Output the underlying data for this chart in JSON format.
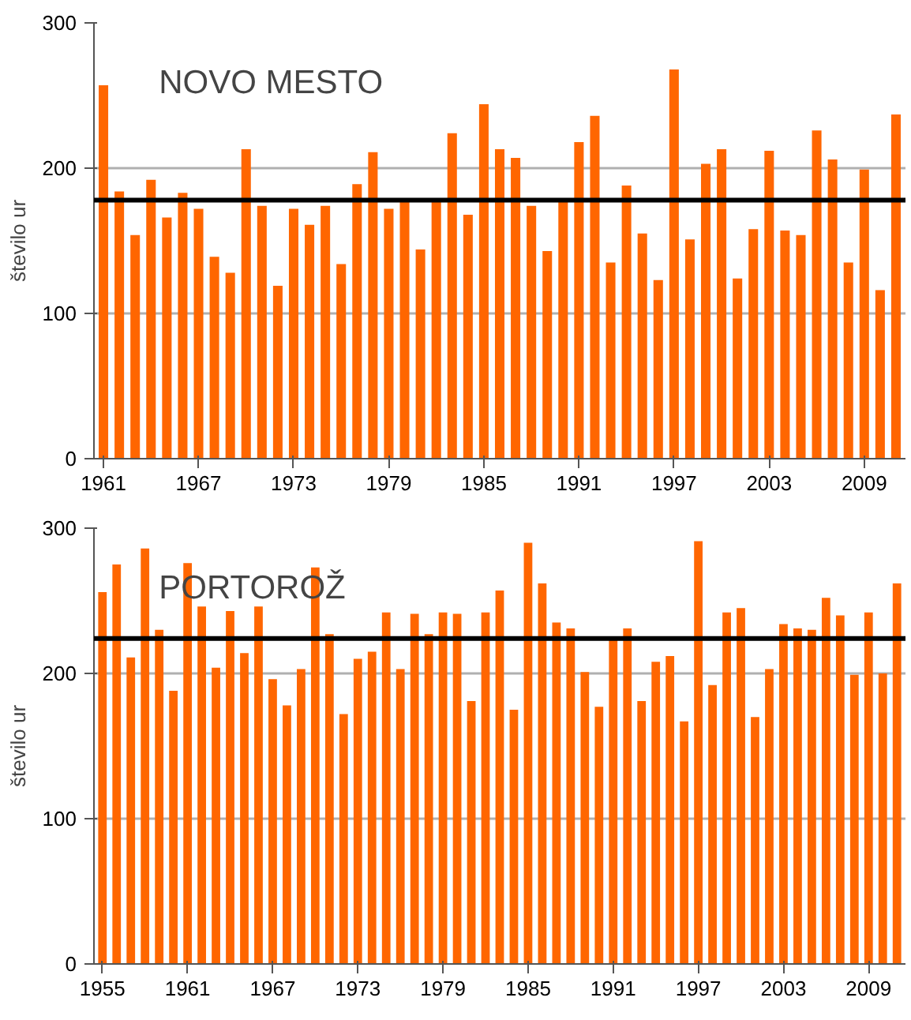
{
  "chart_data": [
    {
      "type": "bar",
      "title": "NOVO MESTO",
      "ylabel": "število ur",
      "x": [
        1961,
        1962,
        1963,
        1964,
        1965,
        1966,
        1967,
        1968,
        1969,
        1970,
        1971,
        1972,
        1973,
        1974,
        1975,
        1976,
        1977,
        1978,
        1979,
        1980,
        1981,
        1982,
        1983,
        1984,
        1985,
        1986,
        1987,
        1988,
        1989,
        1990,
        1991,
        1992,
        1993,
        1994,
        1995,
        1996,
        1997,
        1998,
        1999,
        2000,
        2001,
        2002,
        2003,
        2004,
        2005,
        2006,
        2007,
        2008,
        2009,
        2010,
        2011
      ],
      "values": [
        257,
        184,
        154,
        192,
        166,
        183,
        172,
        139,
        128,
        213,
        174,
        119,
        172,
        161,
        174,
        134,
        189,
        211,
        172,
        177,
        144,
        177,
        224,
        168,
        244,
        213,
        207,
        174,
        143,
        177,
        218,
        236,
        135,
        188,
        155,
        123,
        268,
        151,
        203,
        213,
        124,
        158,
        212,
        157,
        154,
        226,
        206,
        135,
        199,
        116,
        237
      ],
      "color": "#ff6600",
      "xlim": [
        1960.4,
        2011.6
      ],
      "xticks": [
        1961,
        1967,
        1973,
        1979,
        1985,
        1991,
        1997,
        2003,
        2009
      ],
      "ylim": [
        0,
        300
      ],
      "yticks": [
        0,
        100,
        200,
        300
      ],
      "grid": "y",
      "ref_lines": [
        {
          "axis": "y",
          "value": 178,
          "color": "#000000"
        }
      ]
    },
    {
      "type": "bar",
      "title": "PORTOROŽ",
      "ylabel": "število ur",
      "x": [
        1955,
        1956,
        1957,
        1958,
        1959,
        1960,
        1961,
        1962,
        1963,
        1964,
        1965,
        1966,
        1967,
        1968,
        1969,
        1970,
        1971,
        1972,
        1973,
        1974,
        1975,
        1976,
        1977,
        1978,
        1979,
        1980,
        1981,
        1982,
        1983,
        1984,
        1985,
        1986,
        1987,
        1988,
        1989,
        1990,
        1991,
        1992,
        1993,
        1994,
        1995,
        1996,
        1997,
        1998,
        1999,
        2000,
        2001,
        2002,
        2003,
        2004,
        2005,
        2006,
        2007,
        2008,
        2009,
        2010,
        2011
      ],
      "values": [
        256,
        275,
        211,
        286,
        230,
        188,
        276,
        246,
        204,
        243,
        214,
        246,
        196,
        178,
        203,
        273,
        227,
        172,
        210,
        215,
        242,
        203,
        241,
        227,
        242,
        241,
        181,
        242,
        257,
        175,
        290,
        262,
        235,
        231,
        201,
        177,
        223,
        231,
        181,
        208,
        212,
        167,
        291,
        192,
        242,
        245,
        170,
        203,
        234,
        231,
        230,
        252,
        240,
        199,
        242,
        200,
        262
      ],
      "color": "#ff6600",
      "xlim": [
        1954.4,
        2011.6
      ],
      "xticks": [
        1955,
        1961,
        1967,
        1973,
        1979,
        1985,
        1991,
        1997,
        2003,
        2009
      ],
      "ylim": [
        0,
        300
      ],
      "yticks": [
        0,
        100,
        200,
        300
      ],
      "grid": "y",
      "ref_lines": [
        {
          "axis": "y",
          "value": 224,
          "color": "#000000"
        }
      ]
    }
  ]
}
